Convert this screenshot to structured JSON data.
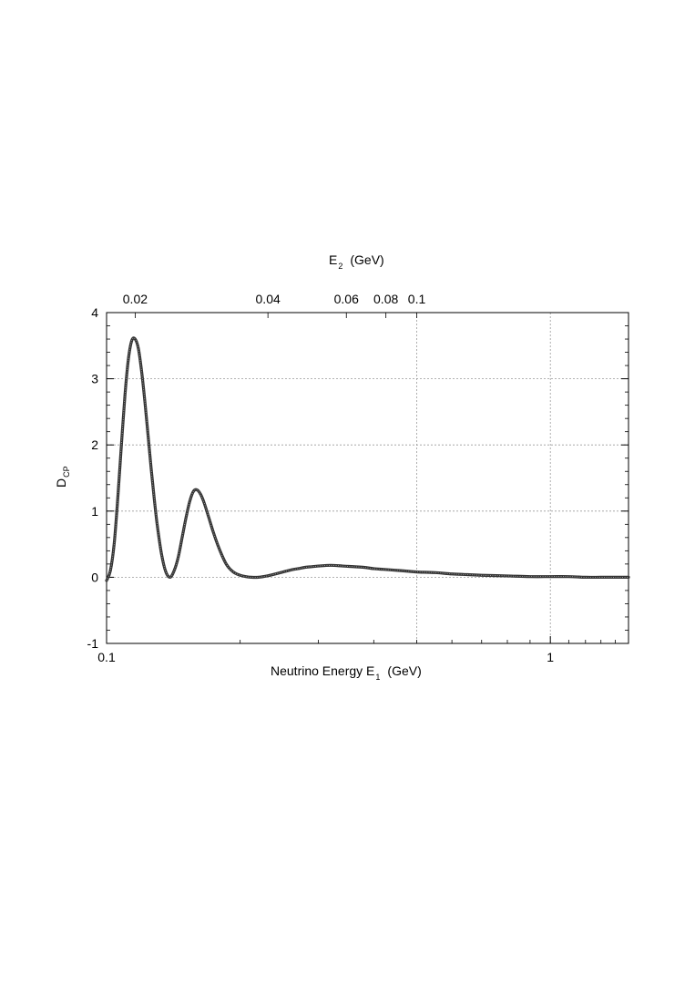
{
  "chart_data": {
    "type": "line",
    "xlabel": "Neutrino Energy E",
    "xlabel_sub": "1",
    "xlabel_unit": "(GeV)",
    "ylabel": "D",
    "ylabel_sub": "CP",
    "x2label": "E",
    "x2label_sub": "2",
    "x2label_unit": "(GeV)",
    "x_scale": "log",
    "xlim": [
      0.1,
      1.5
    ],
    "ylim": [
      -1,
      4
    ],
    "grid": true,
    "x_ticks": [
      {
        "value": 0.1,
        "label": "0.1"
      },
      {
        "value": 1,
        "label": "1"
      }
    ],
    "x_minor_ticks": [
      0.2,
      0.3,
      0.4,
      0.5,
      0.6,
      0.7,
      0.8,
      0.9
    ],
    "x_grid": [
      0.5,
      1
    ],
    "y_ticks": [
      {
        "value": -1,
        "label": "-1"
      },
      {
        "value": 0,
        "label": "0"
      },
      {
        "value": 1,
        "label": "1"
      },
      {
        "value": 2,
        "label": "2"
      },
      {
        "value": 3,
        "label": "3"
      },
      {
        "value": 4,
        "label": "4"
      }
    ],
    "top_ticks": [
      {
        "position": 0.116,
        "label": "0.02"
      },
      {
        "position": 0.231,
        "label": "0.04"
      },
      {
        "position": 0.347,
        "label": "0.06"
      },
      {
        "position": 0.426,
        "label": "0.08"
      },
      {
        "position": 0.5,
        "label": "0.1"
      }
    ],
    "series": [
      {
        "color": "#333333",
        "x": [
          0.1,
          0.102,
          0.104,
          0.106,
          0.108,
          0.11,
          0.112,
          0.114,
          0.116,
          0.118,
          0.12,
          0.122,
          0.124,
          0.126,
          0.128,
          0.13,
          0.133,
          0.136,
          0.139,
          0.142,
          0.145,
          0.148,
          0.151,
          0.154,
          0.157,
          0.16,
          0.163,
          0.166,
          0.17,
          0.174,
          0.178,
          0.182,
          0.186,
          0.19,
          0.195,
          0.2,
          0.206,
          0.212,
          0.22,
          0.23,
          0.24,
          0.25,
          0.26,
          0.27,
          0.28,
          0.29,
          0.3,
          0.32,
          0.34,
          0.36,
          0.38,
          0.4,
          0.42,
          0.44,
          0.46,
          0.48,
          0.5,
          0.55,
          0.6,
          0.65,
          0.7,
          0.8,
          0.9,
          1.0,
          1.1,
          1.2,
          1.3,
          1.4,
          1.5
        ],
        "y": [
          -0.05,
          0.1,
          0.5,
          1.2,
          2.0,
          2.75,
          3.3,
          3.58,
          3.6,
          3.45,
          3.1,
          2.65,
          2.15,
          1.65,
          1.2,
          0.8,
          0.35,
          0.08,
          0.0,
          0.1,
          0.3,
          0.6,
          0.9,
          1.15,
          1.3,
          1.32,
          1.25,
          1.12,
          0.9,
          0.68,
          0.49,
          0.33,
          0.2,
          0.12,
          0.06,
          0.03,
          0.01,
          0.0,
          0.0,
          0.02,
          0.05,
          0.08,
          0.11,
          0.13,
          0.15,
          0.16,
          0.17,
          0.18,
          0.17,
          0.16,
          0.15,
          0.13,
          0.12,
          0.11,
          0.1,
          0.09,
          0.08,
          0.07,
          0.05,
          0.04,
          0.03,
          0.02,
          0.01,
          0.01,
          0.01,
          0.0,
          0.0,
          0.0,
          0.0
        ]
      }
    ]
  }
}
